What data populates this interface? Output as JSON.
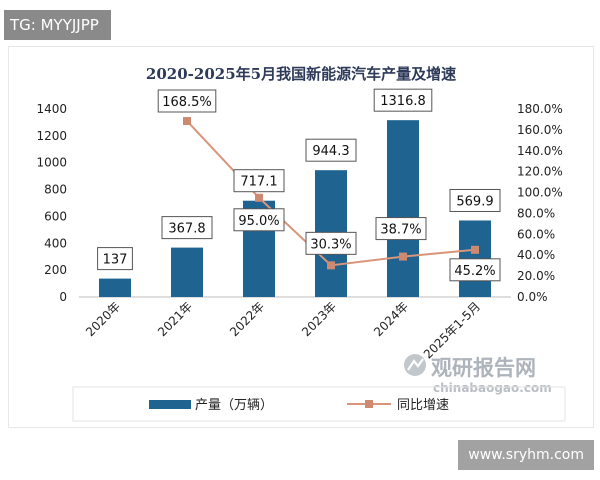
{
  "tag_label": "TG: MYYJJPP",
  "site_label": "www.sryhm.com",
  "watermark": {
    "name": "观研报告网",
    "domain": "chinabaogao.com"
  },
  "colors": {
    "bar": "#1f6391",
    "line": "#d8957b",
    "line_marker": "#cd8a70",
    "title": "#2e3a59"
  },
  "chart_data": {
    "type": "bar",
    "title": "2020-2025年5月我国新能源汽车产量及增速",
    "categories": [
      "2020年",
      "2021年",
      "2022年",
      "2023年",
      "2024年",
      "2025年1-5月"
    ],
    "series": [
      {
        "name": "产量（万辆）",
        "type": "bar",
        "axis": "left",
        "values": [
          137,
          367.8,
          717.1,
          944.3,
          1316.8,
          569.9
        ],
        "labels": [
          "137",
          "367.8",
          "717.1",
          "944.3",
          "1316.8",
          "569.9"
        ]
      },
      {
        "name": "同比增速",
        "type": "line",
        "axis": "right",
        "values": [
          null,
          168.5,
          95.0,
          30.3,
          38.7,
          45.2
        ],
        "labels": [
          "",
          "168.5%",
          "95.0%",
          "30.3%",
          "38.7%",
          "45.2%"
        ]
      }
    ],
    "y_left": {
      "ylim": [
        0,
        1400
      ],
      "ticks": [
        "0",
        "200",
        "400",
        "600",
        "800",
        "1000",
        "1200",
        "1400"
      ]
    },
    "y_right": {
      "ylim": [
        0,
        180
      ],
      "ticks": [
        "0.0%",
        "20.0%",
        "40.0%",
        "60.0%",
        "80.0%",
        "100.0%",
        "120.0%",
        "140.0%",
        "160.0%",
        "180.0%"
      ]
    },
    "legend_position": "bottom",
    "grid": false
  }
}
